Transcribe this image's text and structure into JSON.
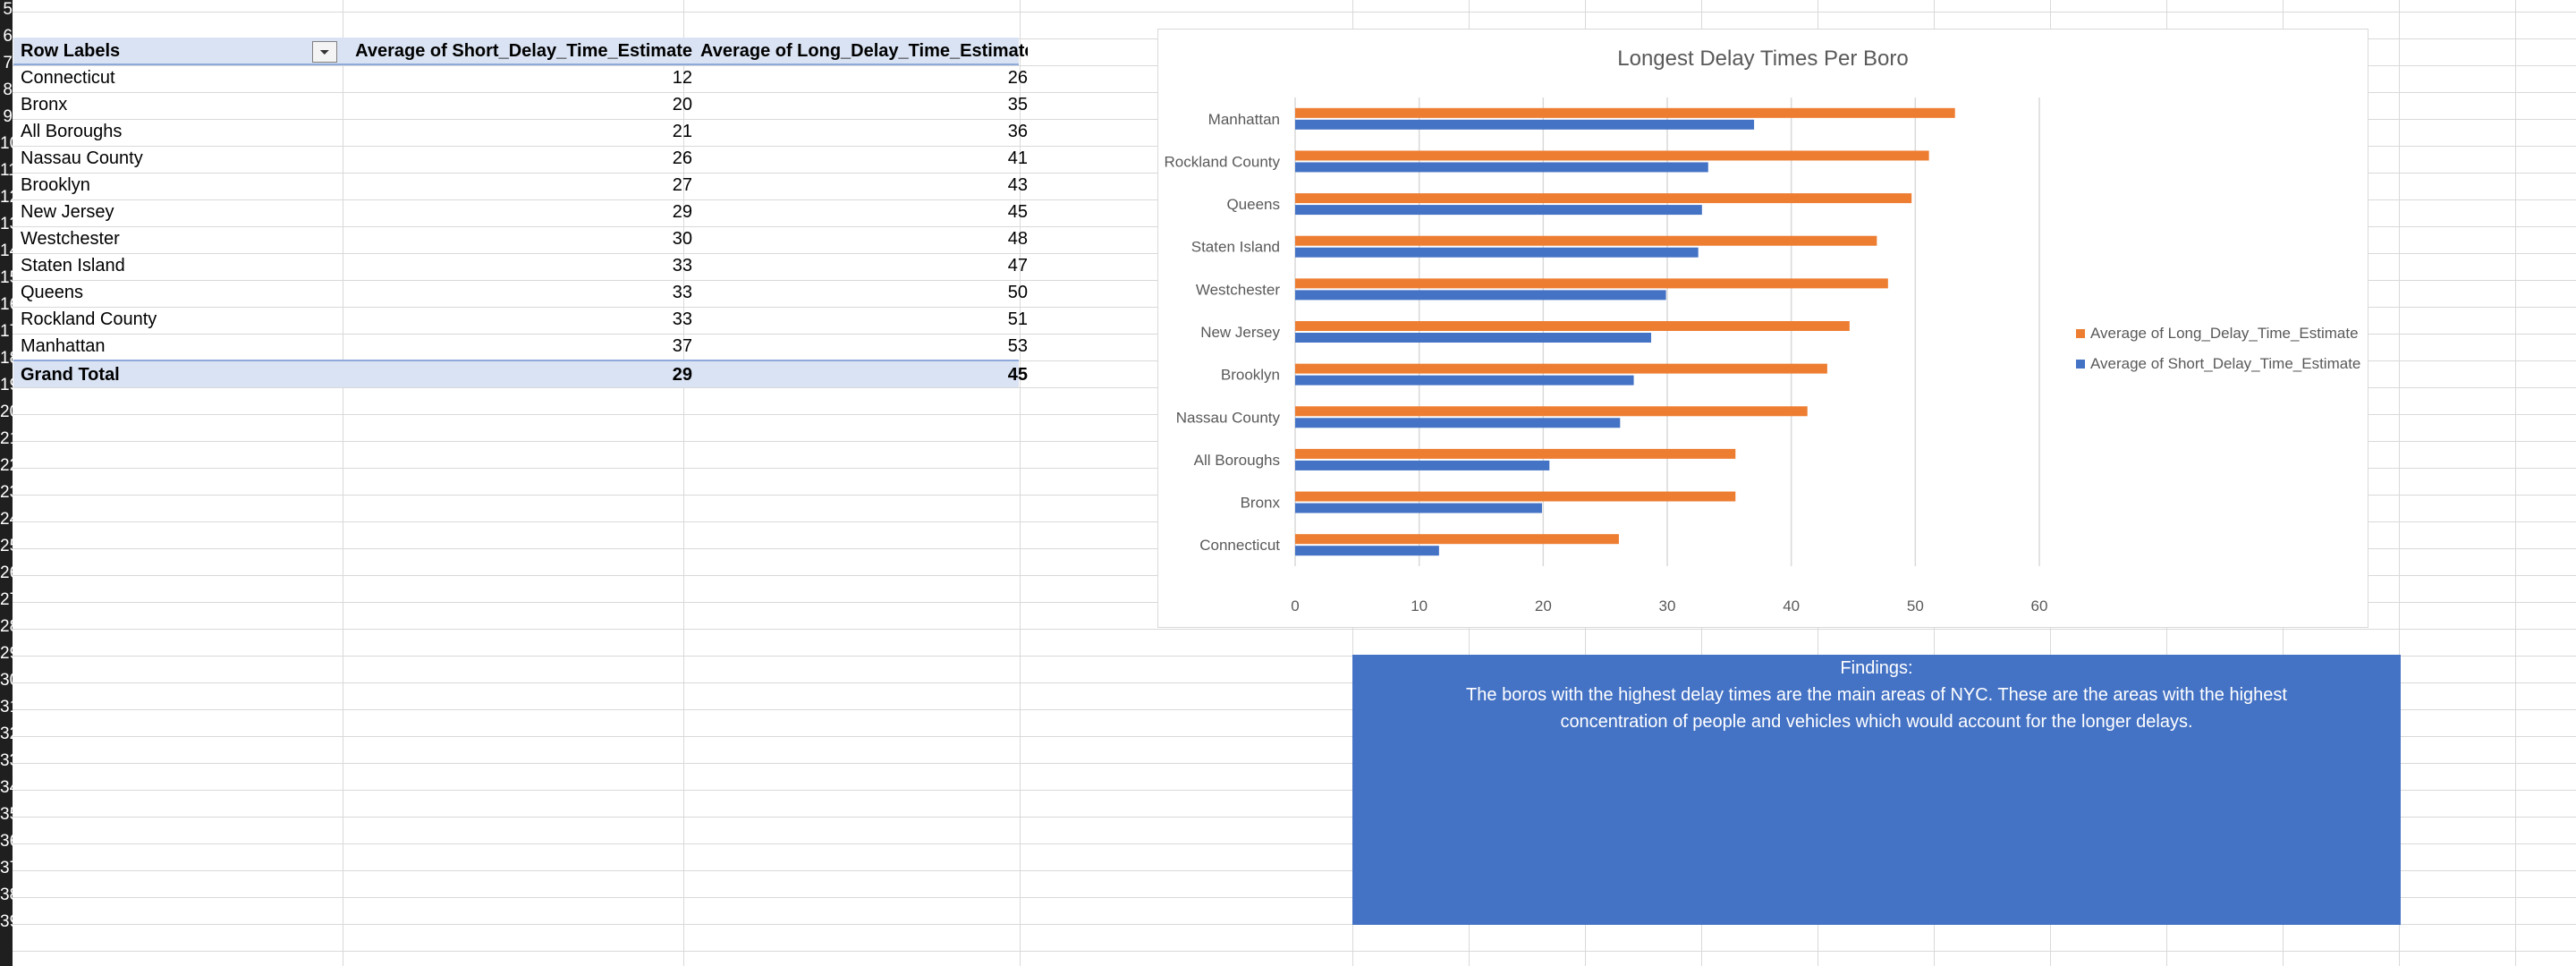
{
  "row_numbers": [
    "5",
    "6",
    "7",
    "8",
    "9",
    "10",
    "11",
    "12",
    "13",
    "14",
    "15",
    "16",
    "17",
    "18",
    "19",
    "20",
    "21",
    "22",
    "23",
    "24",
    "25",
    "26",
    "27",
    "28",
    "29",
    "30",
    "31",
    "32",
    "33",
    "34",
    "35",
    "36",
    "37",
    "38",
    "39"
  ],
  "pivot": {
    "headers": [
      "Row Labels",
      "Average of Short_Delay_Time_Estimate",
      "Average of Long_Delay_Time_Estimate"
    ],
    "filter_icon": "filter-sort-icon",
    "rows": [
      {
        "label": "Connecticut",
        "short": "12",
        "long": "26"
      },
      {
        "label": "Bronx",
        "short": "20",
        "long": "35"
      },
      {
        "label": "All Boroughs",
        "short": "21",
        "long": "36"
      },
      {
        "label": "Nassau County",
        "short": "26",
        "long": "41"
      },
      {
        "label": "Brooklyn",
        "short": "27",
        "long": "43"
      },
      {
        "label": "New Jersey",
        "short": "29",
        "long": "45"
      },
      {
        "label": "Westchester",
        "short": "30",
        "long": "48"
      },
      {
        "label": "Staten Island",
        "short": "33",
        "long": "47"
      },
      {
        "label": "Queens",
        "short": "33",
        "long": "50"
      },
      {
        "label": "Rockland County",
        "short": "33",
        "long": "51"
      },
      {
        "label": "Manhattan",
        "short": "37",
        "long": "53"
      }
    ],
    "total": {
      "label": "Grand Total",
      "short": "29",
      "long": "45"
    }
  },
  "chart_data": {
    "type": "bar",
    "orientation": "horizontal",
    "title": "Longest Delay Times Per Boro",
    "categories": [
      "Connecticut",
      "Bronx",
      "All Boroughs",
      "Nassau County",
      "Brooklyn",
      "New Jersey",
      "Westchester",
      "Staten Island",
      "Queens",
      "Rockland County",
      "Manhattan"
    ],
    "series": [
      {
        "name": "Average of Long_Delay_Time_Estimate",
        "color": "#ed7d31",
        "values": [
          26.1,
          35.5,
          35.5,
          41.3,
          42.9,
          44.7,
          47.8,
          46.9,
          49.7,
          51.1,
          53.2
        ]
      },
      {
        "name": "Average of Short_Delay_Time_Estimate",
        "color": "#4472c4",
        "values": [
          11.6,
          19.9,
          20.5,
          26.2,
          27.3,
          28.7,
          29.9,
          32.5,
          32.8,
          33.3,
          37.0
        ]
      }
    ],
    "xlim": [
      0,
      60
    ],
    "xticks": [
      "0",
      "10",
      "20",
      "30",
      "40",
      "50",
      "60"
    ],
    "grid": true,
    "legend": "right"
  },
  "findings": {
    "title": "Findings:",
    "body": "The boros with the highest delay times are the main areas of NYC. These are the areas with the highest concentration of people and vehicles which would account for the longer delays."
  }
}
